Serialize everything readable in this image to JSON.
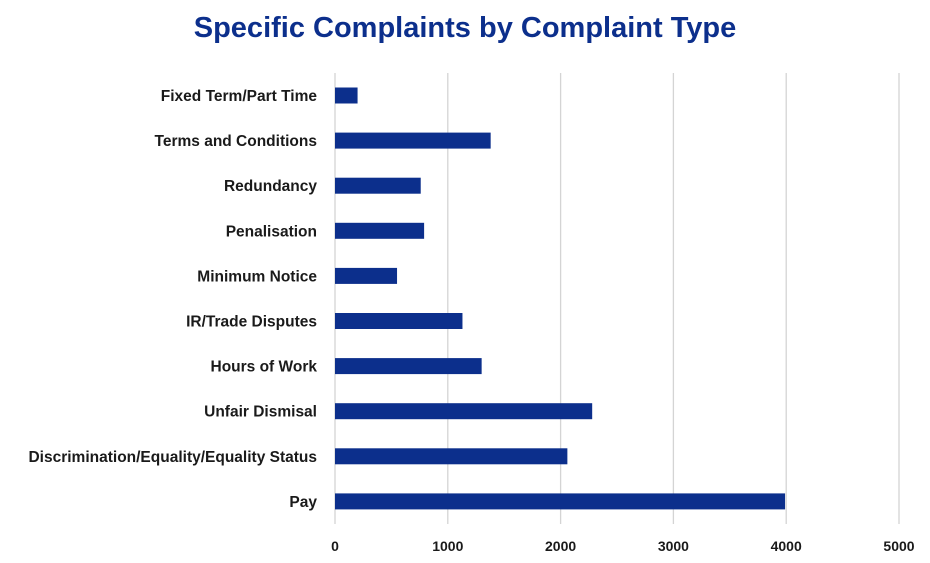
{
  "chart_data": {
    "type": "bar",
    "orientation": "horizontal",
    "title": "Specific Complaints by Complaint Type",
    "categories": [
      "Fixed Term/Part Time",
      "Terms and Conditions",
      "Redundancy",
      "Penalisation",
      "Minimum Notice",
      "IR/Trade Disputes",
      "Hours of Work",
      "Unfair Dismisal",
      "Discrimination/Equality/Equality Status",
      "Pay"
    ],
    "values": [
      200,
      1380,
      760,
      790,
      550,
      1130,
      1300,
      2280,
      2060,
      3990
    ],
    "xlim": [
      0,
      5000
    ],
    "xticks": [
      0,
      1000,
      2000,
      3000,
      4000,
      5000
    ],
    "grid": true,
    "legend": "none",
    "bar_color": "#0c2f8c"
  }
}
